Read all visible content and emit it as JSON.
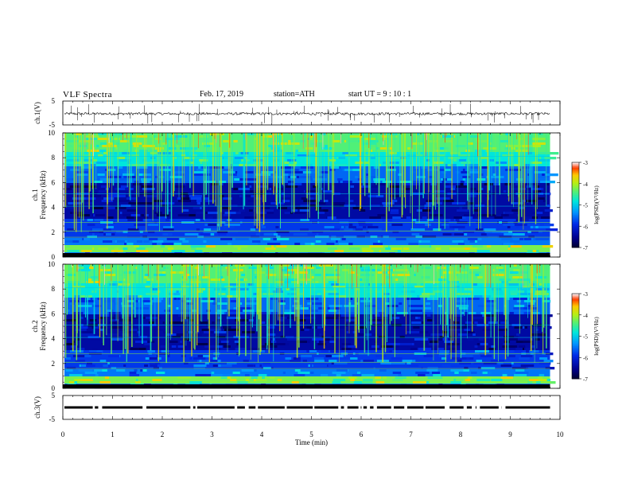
{
  "header": {
    "title": "VLF  Spectra",
    "date": "Feb. 17, 2019",
    "station": "station=ATH",
    "start_ut": "start  UT  =    9  : 10 : 1"
  },
  "chart_data": [
    {
      "type": "line",
      "title": "",
      "ylabel": "ch.1(V)",
      "ylim": [
        -5,
        5
      ],
      "y_ticks": [
        "5",
        "-5"
      ],
      "xlim": [
        0,
        10
      ],
      "description_values": {
        "baseline": -0.3,
        "noise_amplitude": 1.2,
        "data_end_min": 9.8
      }
    },
    {
      "type": "heatmap",
      "ylabel": "ch.1\nFrequency  (kHz)",
      "ylim": [
        0,
        10
      ],
      "y_ticks": [
        "0",
        "2",
        "4",
        "6",
        "8",
        "10"
      ],
      "xlim": [
        0,
        10
      ],
      "data_end_min": 9.8,
      "colorbar": {
        "label": "log(PSD)(V²/Hz)",
        "ticks": [
          "-3",
          "-4",
          "-5",
          "-6",
          "-7"
        ],
        "range": [
          -7,
          -3
        ]
      }
    },
    {
      "type": "heatmap",
      "ylabel": "ch.2\nFrequency  (kHz)",
      "ylim": [
        0,
        10
      ],
      "y_ticks": [
        "0",
        "2",
        "4",
        "6",
        "8",
        "10"
      ],
      "xlim": [
        0,
        10
      ],
      "data_end_min": 9.8,
      "colorbar": {
        "label": "log(PSD)(V²/Hz)",
        "ticks": [
          "-3",
          "-4",
          "-5",
          "-6",
          "-7"
        ],
        "range": [
          -7,
          -3
        ]
      }
    },
    {
      "type": "line",
      "ylabel": "ch.3(V)",
      "ylim": [
        -5,
        5
      ],
      "y_ticks": [
        "5",
        "-5"
      ],
      "xlim": [
        0,
        10
      ],
      "xlabel": "Time  (min)",
      "x_ticks": [
        "0",
        "1",
        "2",
        "3",
        "4",
        "5",
        "6",
        "7",
        "8",
        "9",
        "10"
      ],
      "description_values": {
        "level": 0,
        "data_end_min": 9.8
      }
    }
  ]
}
